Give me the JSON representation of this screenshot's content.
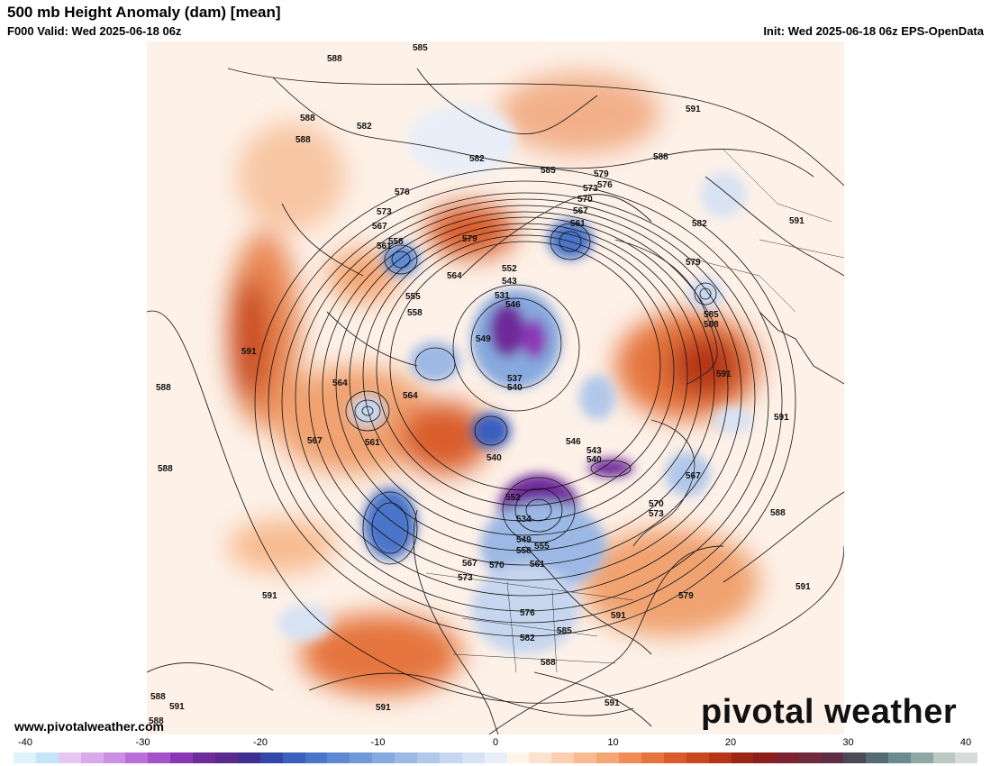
{
  "header": {
    "title": "500 mb Height Anomaly (dam) [mean]",
    "valid": "F000 Valid: Wed 2025-06-18 06z",
    "init": "Init: Wed 2025-06-18 06z EPS-OpenData"
  },
  "footer": {
    "website": "www.pivotalweather.com",
    "brand": "pivotal weather"
  },
  "colorbar": {
    "ticks": [
      "-40",
      "-30",
      "-20",
      "-10",
      "0",
      "10",
      "20",
      "30",
      "40"
    ],
    "colors": [
      "#dff3fb",
      "#c5e4f5",
      "#e6c6f2",
      "#d9a9eb",
      "#cb8fe3",
      "#bb70d9",
      "#a551c9",
      "#8a37b5",
      "#6e2c9b",
      "#5a2a8c",
      "#3f2f91",
      "#3347a8",
      "#3a5fbd",
      "#4b75c9",
      "#5e89d2",
      "#7199d8",
      "#86a9de",
      "#9cb8e4",
      "#b2c8ea",
      "#c6d6ef",
      "#d7e2f3",
      "#e8eef8",
      "#fff3ea",
      "#fde3cf",
      "#fbd0b1",
      "#f8bb91",
      "#f4a673",
      "#ee8d55",
      "#e5743d",
      "#d95d2c",
      "#c9481f",
      "#b53517",
      "#9c2612",
      "#8a1f1c",
      "#7d2230",
      "#702a3f",
      "#5e2f44",
      "#4b4a58",
      "#556a75",
      "#6a8b8f",
      "#8fa8a6",
      "#bcc8c3",
      "#d8dcd9"
    ]
  },
  "map": {
    "contour_labels": [
      "585",
      "588",
      "588",
      "588",
      "591",
      "582",
      "582",
      "585",
      "588",
      "579",
      "576",
      "573",
      "567",
      "561",
      "558",
      "591",
      "591",
      "588",
      "582",
      "579",
      "576",
      "573",
      "570",
      "567",
      "561",
      "564",
      "555",
      "558",
      "579",
      "552",
      "543",
      "531",
      "546",
      "549",
      "537",
      "540",
      "564",
      "564",
      "561",
      "567",
      "588",
      "591",
      "585",
      "588",
      "591",
      "546",
      "543",
      "540",
      "567",
      "540",
      "552",
      "534",
      "549",
      "558",
      "555",
      "561",
      "567",
      "570",
      "573",
      "579",
      "591",
      "588",
      "591",
      "570",
      "573",
      "591",
      "576",
      "582",
      "585",
      "588",
      "591",
      "588",
      "591",
      "588",
      "591"
    ],
    "anomaly_areas": [
      {
        "name": "negative-anomaly",
        "value": -10
      },
      {
        "name": "negative-anomaly",
        "value": -20
      },
      {
        "name": "positive-anomaly",
        "value": 10
      },
      {
        "name": "positive-anomaly",
        "value": 20
      }
    ]
  }
}
